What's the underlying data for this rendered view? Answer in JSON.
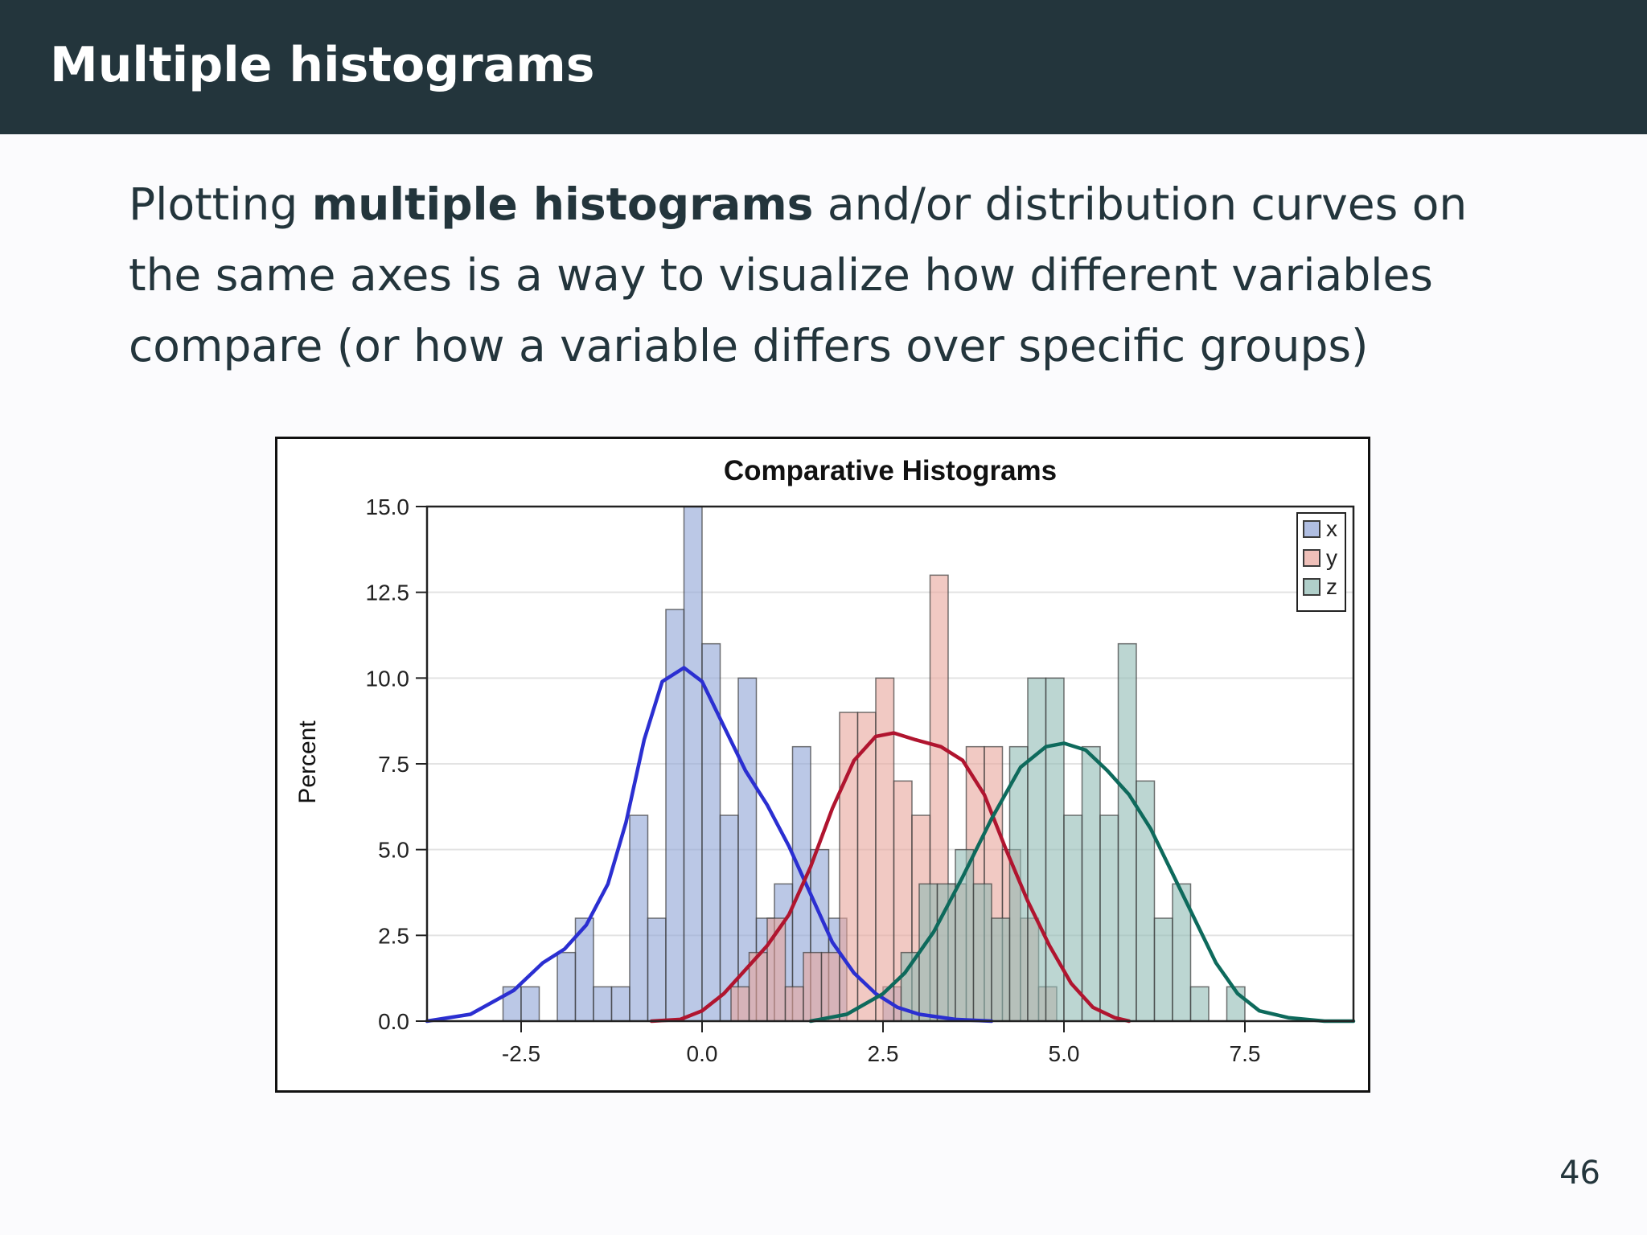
{
  "slide": {
    "title": "Multiple histograms",
    "text_before": "Plotting ",
    "text_bold": "multiple histograms",
    "text_after": " and/or distribution curves on the same axes is a way to visualize how different variables compare (or how a variable differs over specific groups)",
    "page_number": "46"
  },
  "chart_data": {
    "type": "bar",
    "title": "Comparative Histograms",
    "xlabel": "",
    "ylabel": "Percent",
    "xlim": [
      -3.8,
      9.0
    ],
    "ylim": [
      0,
      15
    ],
    "xticks": [
      -2.5,
      0.0,
      2.5,
      5.0,
      7.5
    ],
    "yticks": [
      0.0,
      2.5,
      5.0,
      7.5,
      10.0,
      12.5,
      15.0
    ],
    "bin_width": 0.25,
    "grid": "horizontal",
    "legend_position": "top-right",
    "series": [
      {
        "name": "x",
        "color": "#8ea3d6",
        "curve_color": "#2b2fd1",
        "bin_start": -2.75,
        "values": [
          1,
          1,
          0,
          2,
          3,
          1,
          1,
          6,
          3,
          12,
          15,
          11,
          6,
          10,
          3,
          4,
          8,
          5,
          3,
          0,
          0,
          1
        ],
        "curve": [
          [
            -3.8,
            0.0
          ],
          [
            -3.2,
            0.2
          ],
          [
            -2.6,
            0.9
          ],
          [
            -2.2,
            1.7
          ],
          [
            -1.9,
            2.1
          ],
          [
            -1.6,
            2.8
          ],
          [
            -1.3,
            4.0
          ],
          [
            -1.05,
            5.8
          ],
          [
            -0.8,
            8.2
          ],
          [
            -0.55,
            9.9
          ],
          [
            -0.25,
            10.3
          ],
          [
            0.0,
            9.9
          ],
          [
            0.3,
            8.6
          ],
          [
            0.6,
            7.3
          ],
          [
            0.9,
            6.3
          ],
          [
            1.2,
            5.1
          ],
          [
            1.5,
            3.7
          ],
          [
            1.8,
            2.3
          ],
          [
            2.1,
            1.4
          ],
          [
            2.4,
            0.8
          ],
          [
            2.7,
            0.4
          ],
          [
            3.0,
            0.2
          ],
          [
            3.5,
            0.05
          ],
          [
            4.0,
            0.0
          ]
        ]
      },
      {
        "name": "y",
        "color": "#e8a59b",
        "curve_color": "#b0152f",
        "bin_start": 0.4,
        "values": [
          1,
          2,
          3,
          1,
          2,
          2,
          9,
          9,
          10,
          7,
          6,
          13,
          4,
          8,
          8,
          5,
          3,
          1
        ],
        "curve": [
          [
            -0.7,
            0.0
          ],
          [
            -0.3,
            0.05
          ],
          [
            0.0,
            0.3
          ],
          [
            0.3,
            0.8
          ],
          [
            0.6,
            1.5
          ],
          [
            0.9,
            2.2
          ],
          [
            1.2,
            3.1
          ],
          [
            1.5,
            4.5
          ],
          [
            1.8,
            6.2
          ],
          [
            2.1,
            7.6
          ],
          [
            2.4,
            8.3
          ],
          [
            2.65,
            8.4
          ],
          [
            2.95,
            8.2
          ],
          [
            3.3,
            8.0
          ],
          [
            3.6,
            7.6
          ],
          [
            3.9,
            6.6
          ],
          [
            4.2,
            5.0
          ],
          [
            4.5,
            3.5
          ],
          [
            4.8,
            2.2
          ],
          [
            5.1,
            1.1
          ],
          [
            5.4,
            0.4
          ],
          [
            5.7,
            0.1
          ],
          [
            5.9,
            0.0
          ]
        ]
      },
      {
        "name": "z",
        "color": "#8fbab4",
        "curve_color": "#0e6a5c",
        "bin_start": 2.75,
        "values": [
          2,
          4,
          4,
          5,
          4,
          3,
          8,
          10,
          10,
          6,
          8,
          6,
          11,
          7,
          3,
          4,
          1,
          0,
          1
        ],
        "curve": [
          [
            1.5,
            0.0
          ],
          [
            2.0,
            0.2
          ],
          [
            2.5,
            0.8
          ],
          [
            2.8,
            1.4
          ],
          [
            3.2,
            2.6
          ],
          [
            3.6,
            4.2
          ],
          [
            4.0,
            5.9
          ],
          [
            4.4,
            7.4
          ],
          [
            4.75,
            8.0
          ],
          [
            5.0,
            8.1
          ],
          [
            5.3,
            7.9
          ],
          [
            5.6,
            7.3
          ],
          [
            5.9,
            6.6
          ],
          [
            6.2,
            5.6
          ],
          [
            6.5,
            4.3
          ],
          [
            6.8,
            3.0
          ],
          [
            7.1,
            1.7
          ],
          [
            7.4,
            0.8
          ],
          [
            7.7,
            0.3
          ],
          [
            8.1,
            0.1
          ],
          [
            8.6,
            0.0
          ],
          [
            9.0,
            0.0
          ]
        ]
      }
    ]
  }
}
